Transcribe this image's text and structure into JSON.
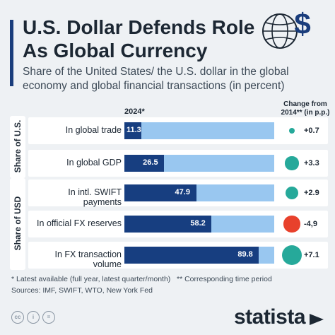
{
  "title": "U.S. Dollar Defends Role\nAs Global Currency",
  "subtitle": "Share of the United States/ the U.S. dollar in the global economy and global financial transactions (in percent)",
  "column_year": "2024*",
  "column_change": "Change from 2014** (in p.p.)",
  "chart_data": {
    "type": "bar",
    "orientation": "horizontal",
    "xlim": [
      0,
      100
    ],
    "groups": [
      {
        "label": "Share of U.S.",
        "rows": [
          0,
          1
        ]
      },
      {
        "label": "Share of USD",
        "rows": [
          2,
          3,
          4
        ]
      }
    ],
    "categories": [
      "In global trade",
      "In global GDP",
      "In intl. SWIFT payments",
      "In official FX reserves",
      "In FX transaction volume"
    ],
    "values": [
      11.3,
      26.5,
      47.9,
      58.2,
      89.8
    ],
    "value_labels": [
      "11.3",
      "26.5",
      "47.9",
      "58.2",
      "89.8"
    ],
    "change": [
      0.7,
      3.3,
      2.9,
      -4.9,
      7.1
    ],
    "change_labels": [
      "+0.7",
      "+3.3",
      "+2.9",
      "-4,9",
      "+7.1"
    ],
    "colors": {
      "bar": "#173e80",
      "track": "#99c7f0",
      "positive": "#26a99a",
      "negative": "#e8412c"
    }
  },
  "footnotes": {
    "latest": "* Latest available (full year, latest quarter/month)",
    "period": "** Corresponding time period",
    "sources": "Sources: IMF, SWIFT, WTO, New York Fed"
  },
  "brand": "statista",
  "icons": [
    "globe-dollar-icon",
    "cc-icon",
    "by-icon",
    "nd-icon",
    "statista-logo-icon"
  ]
}
